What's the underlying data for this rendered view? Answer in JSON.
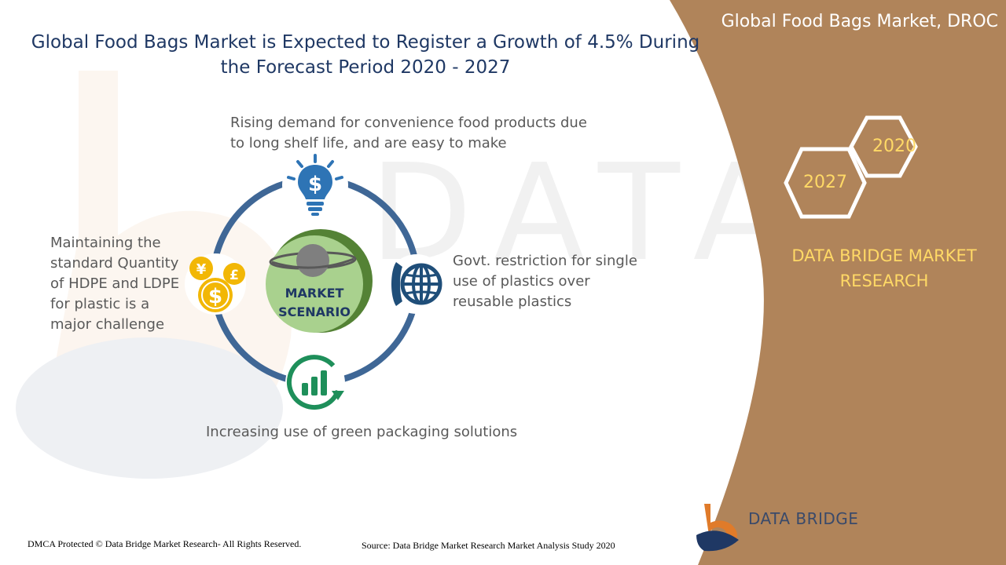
{
  "header": {
    "title": "Global Food Bags Market is Expected to Register a Growth of 4.5% During the Forecast Period 2020 - 2027"
  },
  "side_panel": {
    "title": "Global Food Bags Market, DROC",
    "years": [
      "2020",
      "2027"
    ],
    "brand_name": "DATA BRIDGE MARKET RESEARCH"
  },
  "diagram": {
    "center_label": "MARKET SCENARIO",
    "drivers": {
      "top": "Rising demand for convenience food products due to long shelf life, and are easy to make",
      "right": "Govt. restriction for single use of plastics over reusable plastics",
      "bottom": "Increasing use of green packaging solutions",
      "left": "Maintaining the standard Quantity of HDPE and LDPE for plastic is a major challenge"
    },
    "icons": {
      "top": "lightbulb-dollar-icon",
      "right": "phone-globe-icon",
      "bottom": "growth-chart-icon",
      "left": "currency-coins-icon",
      "center": "planet-icon"
    }
  },
  "colors": {
    "side_panel": "#b0845a",
    "ring": "#3f6796",
    "title": "#1f3864",
    "accent_yellow": "#ffd966",
    "center_green": "#a9d18e",
    "center_green_dark": "#548235",
    "icon_blue": "#2e74b5",
    "icon_green": "#1e8f5a",
    "icon_gold": "#f2b705"
  },
  "footer": {
    "left": "DMCA Protected © Data Bridge Market Research- All Rights Reserved.",
    "right": "Source: Data Bridge Market Research Market Analysis Study 2020"
  },
  "logo": {
    "name": "DATA BRIDGE"
  }
}
